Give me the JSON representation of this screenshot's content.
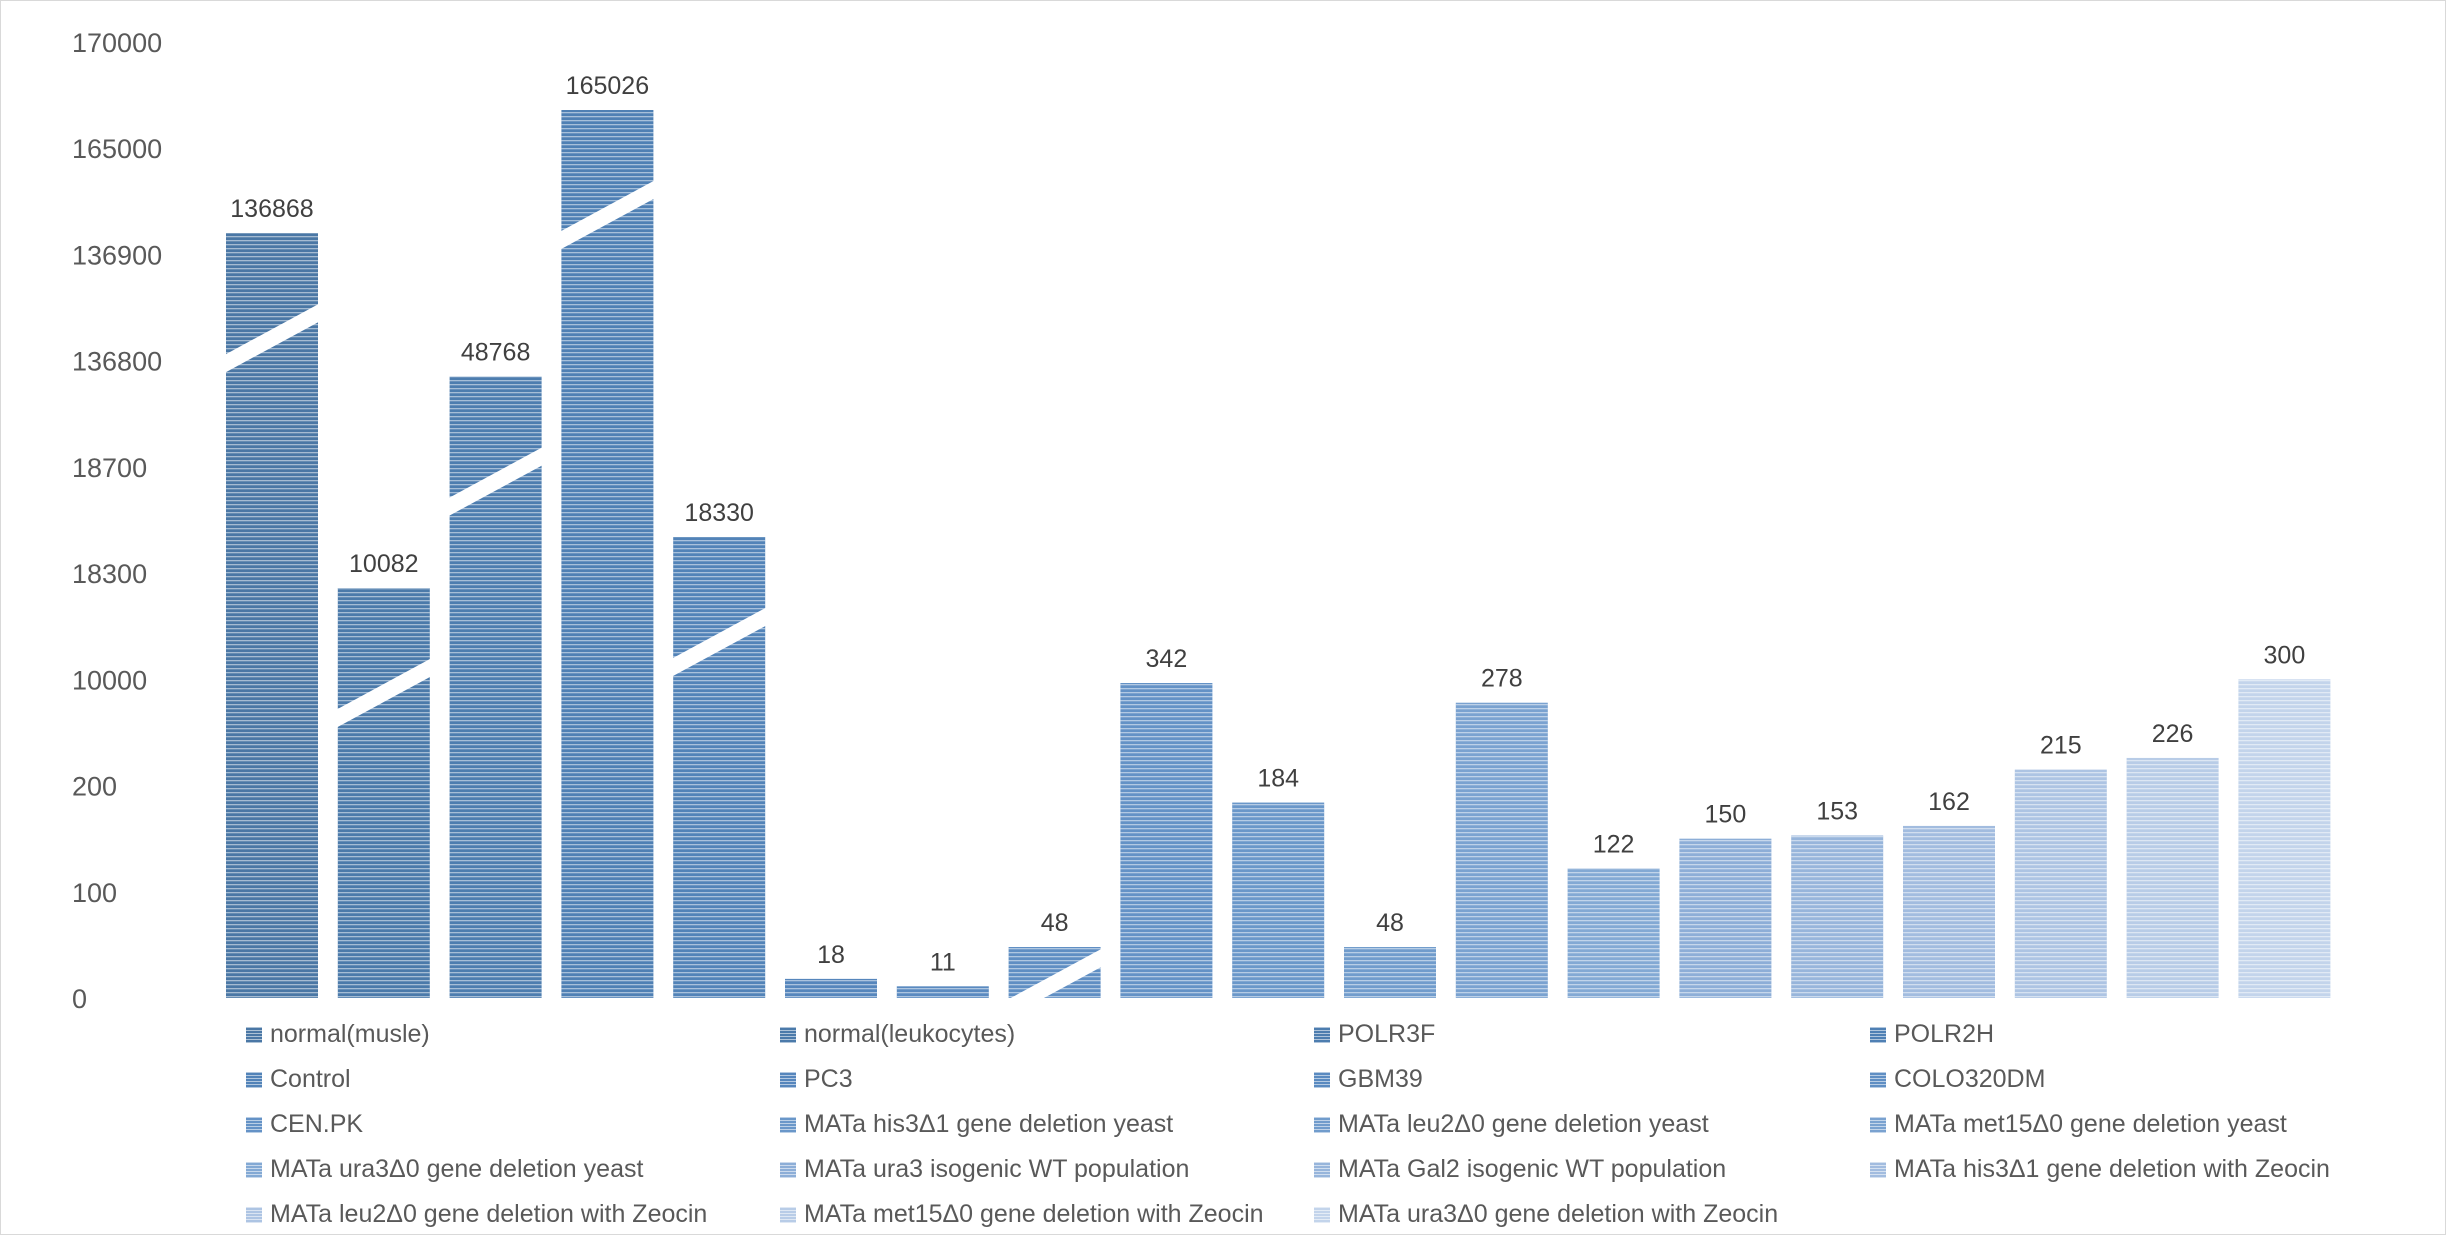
{
  "chart_data": {
    "type": "bar",
    "title": "",
    "xlabel": "",
    "ylabel": "",
    "y_tick_labels": [
      "0",
      "100",
      "200",
      "10000",
      "18300",
      "18700",
      "136800",
      "136900",
      "165000",
      "170000"
    ],
    "broken_axis": true,
    "grid": false,
    "legend_position": "bottom",
    "categories": [
      "normal(musle)",
      "normal(leukocytes)",
      "POLR3F",
      "POLR2H",
      "Control",
      "PC3",
      "GBM39",
      "COLO320DM",
      "CEN.PK",
      "MATa his3Δ1 gene deletion yeast",
      "MATa leu2Δ0 gene deletion yeast",
      "MATa met15Δ0 gene deletion yeast",
      "MATa ura3Δ0 gene deletion yeast",
      "MATa ura3 isogenic WT population",
      "MATa Gal2 isogenic WT population",
      "MATa his3Δ1 gene deletion with Zeocin",
      "MATa leu2Δ0 gene deletion with Zeocin",
      "MATa met15Δ0 gene deletion with Zeocin",
      "MATa ura3Δ0 gene deletion with Zeocin"
    ],
    "values": [
      136868,
      10082,
      48768,
      165026,
      18330,
      18,
      11,
      48,
      342,
      184,
      48,
      278,
      122,
      150,
      153,
      162,
      215,
      226,
      300
    ],
    "data_labels": [
      "136868",
      "10082",
      "48768",
      "165026",
      "18330",
      "18",
      "11",
      "48",
      "342",
      "184",
      "48",
      "278",
      "122",
      "150",
      "153",
      "162",
      "215",
      "226",
      "300"
    ],
    "axis_breaks_on": [
      "normal(musle)",
      "normal(leukocytes)",
      "POLR3F",
      "POLR2H",
      "Control",
      "COLO320DM"
    ],
    "colors": [
      "#4a77a5",
      "#4b7aaa",
      "#4d7daf",
      "#4f80b4",
      "#5283b8",
      "#5686bc",
      "#5a8ac0",
      "#5f8ec3",
      "#6492c6",
      "#6a97c9",
      "#719ccc",
      "#7aa2d0",
      "#83a9d4",
      "#8daed7",
      "#97b5db",
      "#a2bcdf",
      "#adc4e3",
      "#b8cce7",
      "#c3d4eb"
    ]
  }
}
